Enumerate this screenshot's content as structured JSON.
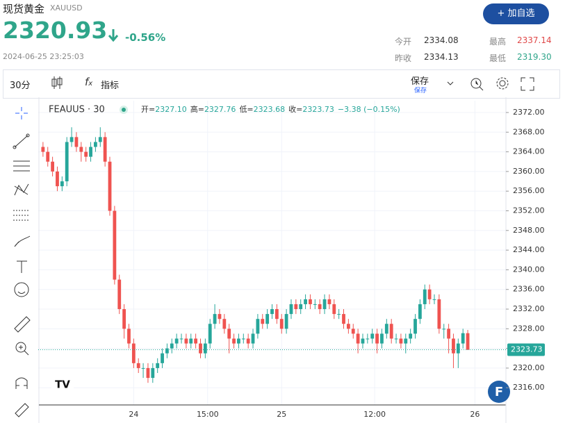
{
  "header": {
    "name": "现货黄金",
    "symbol": "XAUUSD",
    "price": "2320.93",
    "change": "-0.56%",
    "datetime": "2024-06-25 23:25:03",
    "button": "+ 加自选",
    "stats": [
      {
        "label": "今开",
        "value": "2334.08"
      },
      {
        "label": "最高",
        "value": "2337.14"
      },
      {
        "label": "昨收",
        "value": "2334.13"
      },
      {
        "label": "最低",
        "value": "2319.30"
      }
    ]
  },
  "toolbar": {
    "interval": "30分",
    "indicators": "指标",
    "save": "保存",
    "save_sub": "保存"
  },
  "chart_data": {
    "type": "candlestick",
    "title": "FEAUUS · 30",
    "legend": [
      {
        "label": "开=",
        "value": "2327.10"
      },
      {
        "label": "高=",
        "value": "2327.76"
      },
      {
        "label": "低=",
        "value": "2323.68"
      },
      {
        "label": "收=",
        "value": "2323.73"
      }
    ],
    "legend_change": "−3.38 (−0.15%)",
    "price_label": "2323.73",
    "up_color": "#26a69a",
    "down_color": "#ef5350",
    "open": [
      2365,
      2364,
      2362,
      2360,
      2357,
      2358,
      2366,
      2367,
      2365,
      2364,
      2363,
      2365,
      2366,
      2367,
      2362,
      2352,
      2338,
      2332,
      2328,
      2325,
      2321,
      2320,
      2320,
      2318,
      2320,
      2321,
      2323,
      2324,
      2325,
      2326,
      2326,
      2325,
      2326,
      2325,
      2323,
      2325,
      2329,
      2331,
      2330,
      2328,
      2326,
      2325,
      2326,
      2326,
      2325,
      2327,
      2330,
      2329,
      2331,
      2332,
      2330,
      2328,
      2331,
      2333,
      2332,
      2333,
      2334,
      2333,
      2333,
      2332,
      2334,
      2333,
      2331,
      2331,
      2329,
      2328,
      2327,
      2325,
      2326,
      2326,
      2327,
      2325,
      2327,
      2329,
      2326,
      2326,
      2325,
      2326,
      2327,
      2330,
      2333,
      2336,
      2334,
      2334,
      2328,
      2328,
      2326,
      2323,
      2325,
      2327.1
    ],
    "high": [
      2366,
      2365,
      2363,
      2361,
      2359,
      2367,
      2369,
      2368,
      2366,
      2365,
      2366,
      2367,
      2369,
      2368,
      2363,
      2353,
      2339,
      2333,
      2329,
      2326,
      2322,
      2321,
      2321,
      2321,
      2322,
      2324,
      2325,
      2326,
      2327,
      2327,
      2327,
      2327,
      2327,
      2326,
      2326,
      2330,
      2333,
      2332,
      2331,
      2329,
      2327,
      2327,
      2327,
      2327,
      2328,
      2331,
      2331,
      2332,
      2333,
      2333,
      2331,
      2332,
      2334,
      2334,
      2334,
      2335,
      2335,
      2334,
      2334,
      2335,
      2335,
      2334,
      2332,
      2332,
      2330,
      2329,
      2328,
      2327,
      2327,
      2328,
      2328,
      2328,
      2330,
      2330,
      2327,
      2327,
      2327,
      2328,
      2331,
      2334,
      2337,
      2337,
      2335,
      2335,
      2329,
      2329,
      2327,
      2326,
      2328,
      2327.76
    ],
    "low": [
      2363,
      2361,
      2359,
      2356,
      2356,
      2357,
      2365,
      2364,
      2362,
      2362,
      2362,
      2364,
      2365,
      2361,
      2351,
      2337,
      2331,
      2326,
      2324,
      2320,
      2319,
      2318,
      2317,
      2317,
      2319,
      2320,
      2322,
      2323,
      2324,
      2325,
      2324,
      2324,
      2324,
      2322,
      2322,
      2324,
      2328,
      2329,
      2327,
      2323,
      2324,
      2324,
      2325,
      2324,
      2324,
      2326,
      2328,
      2328,
      2330,
      2329,
      2327,
      2327,
      2330,
      2331,
      2331,
      2332,
      2332,
      2332,
      2331,
      2331,
      2332,
      2330,
      2330,
      2328,
      2327,
      2326,
      2323,
      2324,
      2325,
      2325,
      2323,
      2324,
      2326,
      2325,
      2325,
      2324,
      2323,
      2325,
      2326,
      2329,
      2332,
      2333,
      2333,
      2327,
      2326,
      2323,
      2320,
      2320,
      2324,
      2323.68
    ],
    "close": [
      2364,
      2362,
      2360,
      2357,
      2358,
      2366,
      2367,
      2365,
      2364,
      2363,
      2365,
      2366,
      2367,
      2362,
      2352,
      2338,
      2332,
      2328,
      2325,
      2321,
      2320,
      2320,
      2318,
      2320,
      2321,
      2323,
      2324,
      2325,
      2326,
      2326,
      2325,
      2326,
      2325,
      2323,
      2325,
      2329,
      2331,
      2330,
      2328,
      2326,
      2325,
      2326,
      2326,
      2325,
      2327,
      2330,
      2329,
      2331,
      2332,
      2330,
      2328,
      2331,
      2333,
      2332,
      2333,
      2334,
      2333,
      2333,
      2332,
      2334,
      2333,
      2331,
      2331,
      2329,
      2328,
      2327,
      2325,
      2326,
      2326,
      2327,
      2325,
      2327,
      2329,
      2326,
      2326,
      2325,
      2326,
      2327,
      2330,
      2333,
      2336,
      2334,
      2334,
      2328,
      2328,
      2326,
      2323,
      2325,
      2327.1,
      2323.73
    ],
    "xlim": [
      -1,
      97
    ],
    "xticks": [
      {
        "value": 19,
        "label": "24"
      },
      {
        "value": 34.5,
        "label": "15:00"
      },
      {
        "value": 50,
        "label": "25"
      },
      {
        "value": 69.5,
        "label": "12:00"
      },
      {
        "value": 90.5,
        "label": "26"
      }
    ],
    "ylim": [
      2312.5,
      2374.4
    ],
    "yticks": [
      {
        "value": 2316,
        "label": "2316.00"
      },
      {
        "value": 2320,
        "label": "2320.00"
      },
      {
        "value": 2324,
        "label": "2324.00"
      },
      {
        "value": 2328,
        "label": "2328.00"
      },
      {
        "value": 2332,
        "label": "2332.00"
      },
      {
        "value": 2336,
        "label": "2336.00"
      },
      {
        "value": 2340,
        "label": "2340.00"
      },
      {
        "value": 2344,
        "label": "2344.00"
      },
      {
        "value": 2348,
        "label": "2348.00"
      },
      {
        "value": 2352,
        "label": "2352.00"
      },
      {
        "value": 2356,
        "label": "2356.00"
      },
      {
        "value": 2360,
        "label": "2360.00"
      },
      {
        "value": 2364,
        "label": "2364.00"
      },
      {
        "value": 2368,
        "label": "2368.00"
      },
      {
        "value": 2372,
        "label": "2372.00"
      }
    ],
    "grid": true
  }
}
